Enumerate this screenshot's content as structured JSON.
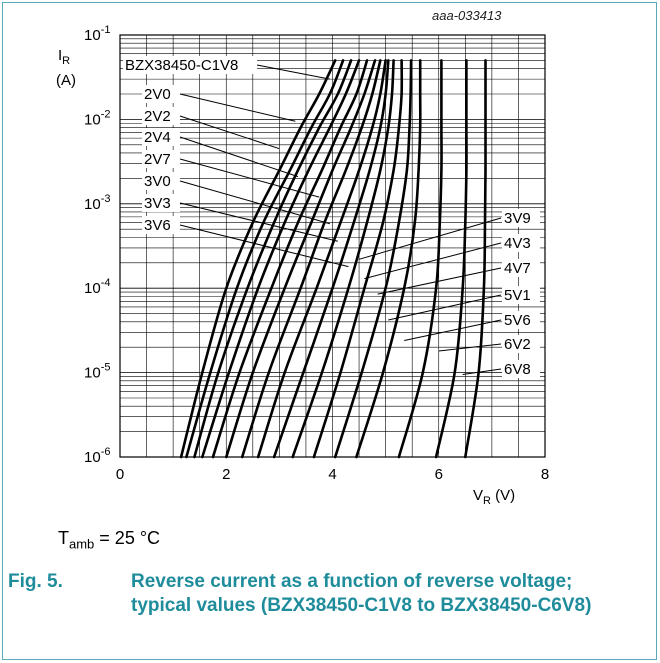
{
  "figure": {
    "code": "aaa-033413",
    "condition_prefix": "T",
    "condition_sub": "amb",
    "condition_suffix": " = 25 °C",
    "caption_number": "Fig. 5.",
    "caption_text": "Reverse current as a function of reverse voltage; typical values (BZX38450-C1V8 to BZX38450-C6V8)"
  },
  "chart_data": {
    "type": "line",
    "title": "",
    "xlabel": "VR (V)",
    "xlabel_main": "V",
    "xlabel_sub": "R",
    "xlabel_unit": " (V)",
    "ylabel": "IR (A)",
    "ylabel_main": "I",
    "ylabel_sub": "R",
    "ylabel_unit": "(A)",
    "xlim": [
      0,
      8
    ],
    "ylim": [
      1e-06,
      0.1
    ],
    "yscale": "log",
    "grid": true,
    "x_ticks": [
      0,
      2,
      4,
      6,
      8
    ],
    "x_tick_labels": [
      "0",
      "2",
      "4",
      "6",
      "8"
    ],
    "y_ticks": [
      1e-06,
      1e-05,
      0.0001,
      0.001,
      0.01,
      0.1
    ],
    "y_tick_labels": [
      {
        "base": "10",
        "exp": "-6"
      },
      {
        "base": "10",
        "exp": "-5"
      },
      {
        "base": "10",
        "exp": "-4"
      },
      {
        "base": "10",
        "exp": "-3"
      },
      {
        "base": "10",
        "exp": "-2"
      },
      {
        "base": "10",
        "exp": "-1"
      }
    ],
    "series": [
      {
        "name": "BZX38450-C1V8",
        "x": [
          1.15,
          1.55,
          2.0,
          2.5,
          3.0,
          3.4,
          3.75,
          4.05
        ],
        "y": [
          1e-06,
          1e-05,
          0.0001,
          0.0006,
          0.0025,
          0.008,
          0.02,
          0.05
        ]
      },
      {
        "name": "2V0",
        "x": [
          1.25,
          1.7,
          2.2,
          2.7,
          3.2,
          3.6,
          3.95,
          4.2
        ],
        "y": [
          1e-06,
          1e-05,
          0.0001,
          0.0006,
          0.0025,
          0.008,
          0.02,
          0.05
        ]
      },
      {
        "name": "2V2",
        "x": [
          1.4,
          1.85,
          2.4,
          2.9,
          3.35,
          3.75,
          4.1,
          4.35
        ],
        "y": [
          1e-06,
          1e-05,
          0.0001,
          0.0006,
          0.0025,
          0.008,
          0.02,
          0.05
        ]
      },
      {
        "name": "2V4",
        "x": [
          1.55,
          2.05,
          2.6,
          3.1,
          3.55,
          3.95,
          4.25,
          4.5
        ],
        "y": [
          1e-06,
          1e-05,
          0.0001,
          0.0006,
          0.0025,
          0.008,
          0.02,
          0.05
        ]
      },
      {
        "name": "2V7",
        "x": [
          1.75,
          2.25,
          2.85,
          3.35,
          3.8,
          4.15,
          4.45,
          4.65
        ],
        "y": [
          1e-06,
          1e-05,
          0.0001,
          0.0006,
          0.0025,
          0.008,
          0.02,
          0.05
        ]
      },
      {
        "name": "3V0",
        "x": [
          2.0,
          2.5,
          3.1,
          3.6,
          4.0,
          4.35,
          4.6,
          4.8
        ],
        "y": [
          1e-06,
          1e-05,
          0.0001,
          0.0006,
          0.0025,
          0.008,
          0.02,
          0.05
        ]
      },
      {
        "name": "3V3",
        "x": [
          2.3,
          2.8,
          3.4,
          3.85,
          4.25,
          4.55,
          4.75,
          4.9
        ],
        "y": [
          1e-06,
          1e-05,
          0.0001,
          0.0006,
          0.0025,
          0.008,
          0.02,
          0.05
        ]
      },
      {
        "name": "3V6",
        "x": [
          2.6,
          3.1,
          3.7,
          4.15,
          4.5,
          4.75,
          4.9,
          5.0
        ],
        "y": [
          1e-06,
          1e-05,
          0.0001,
          0.0006,
          0.0025,
          0.008,
          0.02,
          0.05
        ]
      },
      {
        "name": "3V9",
        "x": [
          2.9,
          3.45,
          4.0,
          4.4,
          4.7,
          4.9,
          5.0,
          5.05
        ],
        "y": [
          1e-06,
          1e-05,
          0.0001,
          0.0006,
          0.0025,
          0.008,
          0.02,
          0.05
        ]
      },
      {
        "name": "4V3",
        "x": [
          3.25,
          3.8,
          4.3,
          4.65,
          4.9,
          5.05,
          5.12,
          5.15
        ],
        "y": [
          1e-06,
          1e-05,
          0.0001,
          0.0006,
          0.0025,
          0.008,
          0.02,
          0.05
        ]
      },
      {
        "name": "4V7",
        "x": [
          3.65,
          4.15,
          4.6,
          4.95,
          5.15,
          5.25,
          5.3,
          5.3
        ],
        "y": [
          1e-06,
          1e-05,
          0.0001,
          0.0006,
          0.0025,
          0.008,
          0.02,
          0.05
        ]
      },
      {
        "name": "5V1",
        "x": [
          4.05,
          4.55,
          5.0,
          5.25,
          5.4,
          5.45,
          5.47,
          5.48
        ],
        "y": [
          1e-06,
          1e-05,
          0.0001,
          0.0006,
          0.0025,
          0.008,
          0.02,
          0.05
        ]
      },
      {
        "name": "5V6",
        "x": [
          4.45,
          4.95,
          5.35,
          5.55,
          5.62,
          5.65,
          5.65,
          5.65
        ],
        "y": [
          1e-06,
          1e-05,
          0.0001,
          0.0006,
          0.0025,
          0.008,
          0.02,
          0.05
        ]
      },
      {
        "name": "6V2",
        "x": [
          5.25,
          5.7,
          5.95,
          6.02,
          6.05,
          6.05,
          6.05,
          6.05
        ],
        "y": [
          1e-06,
          1e-05,
          0.0001,
          0.0006,
          0.0025,
          0.008,
          0.02,
          0.05
        ]
      },
      {
        "name": "6V8",
        "x": [
          5.95,
          6.3,
          6.45,
          6.5,
          6.52,
          6.52,
          6.52,
          6.52
        ],
        "y": [
          1e-06,
          1e-05,
          0.0001,
          0.0006,
          0.0025,
          0.008,
          0.02,
          0.05
        ]
      },
      {
        "name": "",
        "x": [
          6.5,
          6.75,
          6.85,
          6.87,
          6.88,
          6.88,
          6.88,
          6.88
        ],
        "y": [
          1e-06,
          1e-05,
          0.0001,
          0.0006,
          0.0025,
          0.008,
          0.02,
          0.05
        ]
      }
    ],
    "annotations_left": [
      {
        "text": "BZX38450-C1V8",
        "x": 3.95,
        "y": 0.03
      },
      {
        "text": "2V0",
        "x": 3.3,
        "y": 0.0095
      },
      {
        "text": "2V2",
        "x": 3.0,
        "y": 0.0045
      },
      {
        "text": "2V4",
        "x": 3.35,
        "y": 0.0021
      },
      {
        "text": "2V7",
        "x": 3.75,
        "y": 0.0012
      },
      {
        "text": "3V0",
        "x": 3.95,
        "y": 0.00058
      },
      {
        "text": "3V3",
        "x": 4.1,
        "y": 0.00036
      },
      {
        "text": "3V6",
        "x": 4.3,
        "y": 0.00018
      }
    ],
    "annotations_right": [
      {
        "text": "3V9",
        "x": 4.5,
        "y": 0.00022
      },
      {
        "text": "4V3",
        "x": 4.6,
        "y": 0.00013
      },
      {
        "text": "4V7",
        "x": 4.85,
        "y": 8.5e-05
      },
      {
        "text": "5V1",
        "x": 5.05,
        "y": 4.2e-05
      },
      {
        "text": "5V6",
        "x": 5.35,
        "y": 2.4e-05
      },
      {
        "text": "6V2",
        "x": 6.0,
        "y": 1.8e-05
      },
      {
        "text": "6V8",
        "x": 6.45,
        "y": 9.5e-06
      }
    ]
  }
}
